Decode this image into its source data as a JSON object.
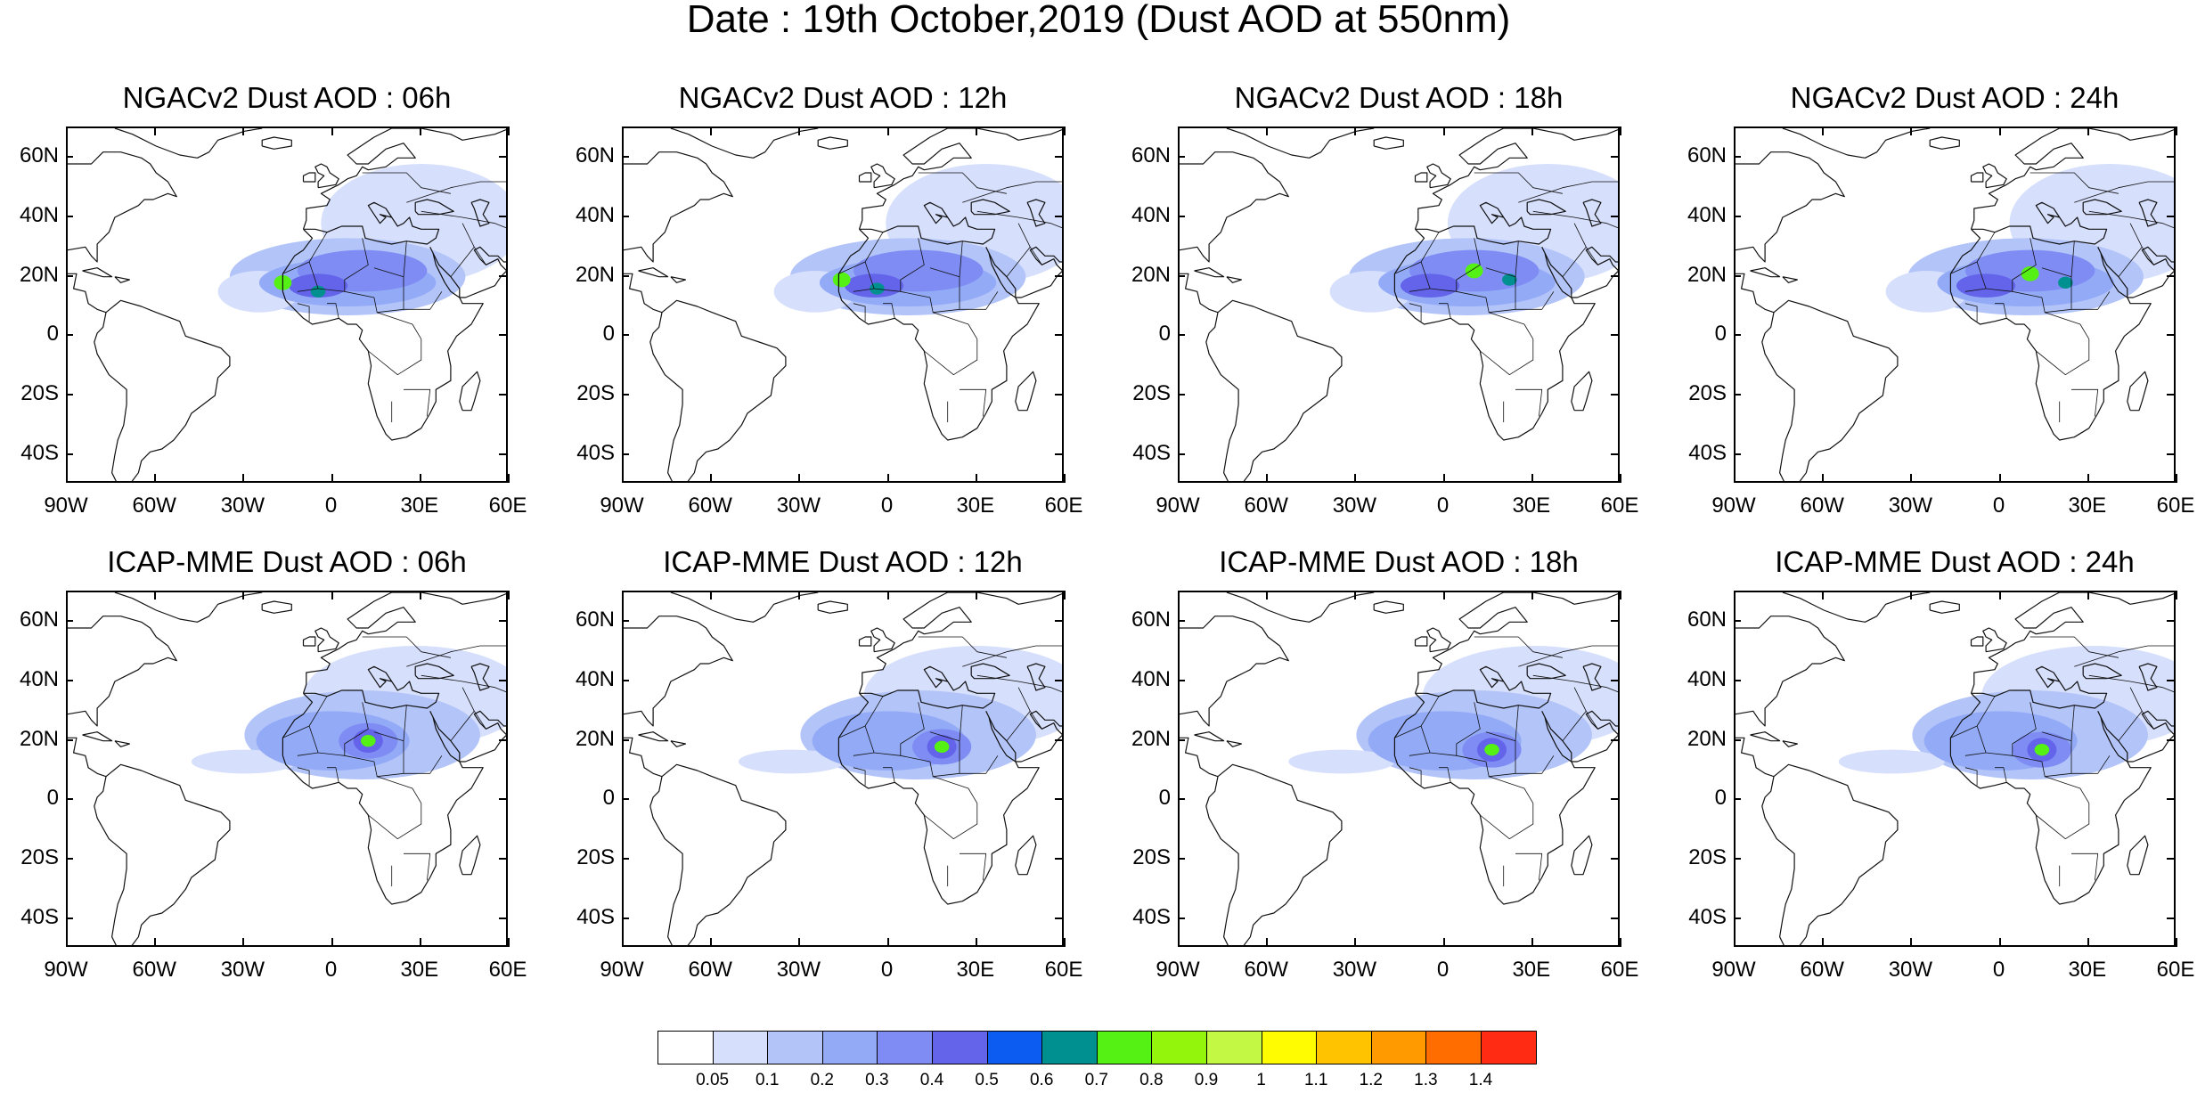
{
  "figure": {
    "title": "Date : 19th October,2019 (Dust AOD at 550nm)"
  },
  "rows": [
    {
      "model": "NGACv2",
      "panels": [
        {
          "title": "NGACv2 Dust AOD : 06h",
          "plume_shift": 0,
          "hotspot": [
            -17,
            18
          ]
        },
        {
          "title": "NGACv2 Dust AOD : 12h",
          "plume_shift": 3,
          "hotspot": [
            -16,
            19
          ]
        },
        {
          "title": "NGACv2 Dust AOD : 18h",
          "plume_shift": 5,
          "hotspot": [
            10,
            22
          ]
        },
        {
          "title": "NGACv2 Dust AOD : 24h",
          "plume_shift": 7,
          "hotspot": [
            10,
            21
          ]
        }
      ]
    },
    {
      "model": "ICAP-MME",
      "panels": [
        {
          "title": "ICAP-MME Dust AOD : 06h",
          "plume_shift": 0,
          "hotspot": [
            12,
            20
          ]
        },
        {
          "title": "ICAP-MME Dust AOD : 12h",
          "plume_shift": 3,
          "hotspot": [
            18,
            18
          ]
        },
        {
          "title": "ICAP-MME Dust AOD : 18h",
          "plume_shift": 5,
          "hotspot": [
            16,
            17
          ]
        },
        {
          "title": "ICAP-MME Dust AOD : 24h",
          "plume_shift": 7,
          "hotspot": [
            14,
            17
          ]
        }
      ]
    }
  ],
  "axes": {
    "lon_labels": [
      "90W",
      "60W",
      "30W",
      "0",
      "30E",
      "60E"
    ],
    "lon_values": [
      -90,
      -60,
      -30,
      0,
      30,
      60
    ],
    "lat_labels": [
      "60N",
      "40N",
      "20N",
      "0",
      "20S",
      "40S"
    ],
    "lat_values": [
      60,
      40,
      20,
      0,
      -20,
      -40
    ],
    "lon_range": [
      -90,
      60
    ],
    "lat_range": [
      -50,
      70
    ]
  },
  "colorbar": {
    "colors": [
      "#ffffff",
      "#d6dffc",
      "#b3c4f9",
      "#93aaf7",
      "#7e8cf3",
      "#6464ea",
      "#0c5cf2",
      "#00908f",
      "#55f014",
      "#94f50c",
      "#c3f845",
      "#fffb00",
      "#ffc300",
      "#ff9a00",
      "#ff6d00",
      "#ff2b13"
    ],
    "labels": [
      "0.05",
      "0.1",
      "0.2",
      "0.3",
      "0.4",
      "0.5",
      "0.6",
      "0.7",
      "0.8",
      "0.9",
      "1",
      "1.1",
      "1.2",
      "1.3",
      "1.4"
    ]
  }
}
